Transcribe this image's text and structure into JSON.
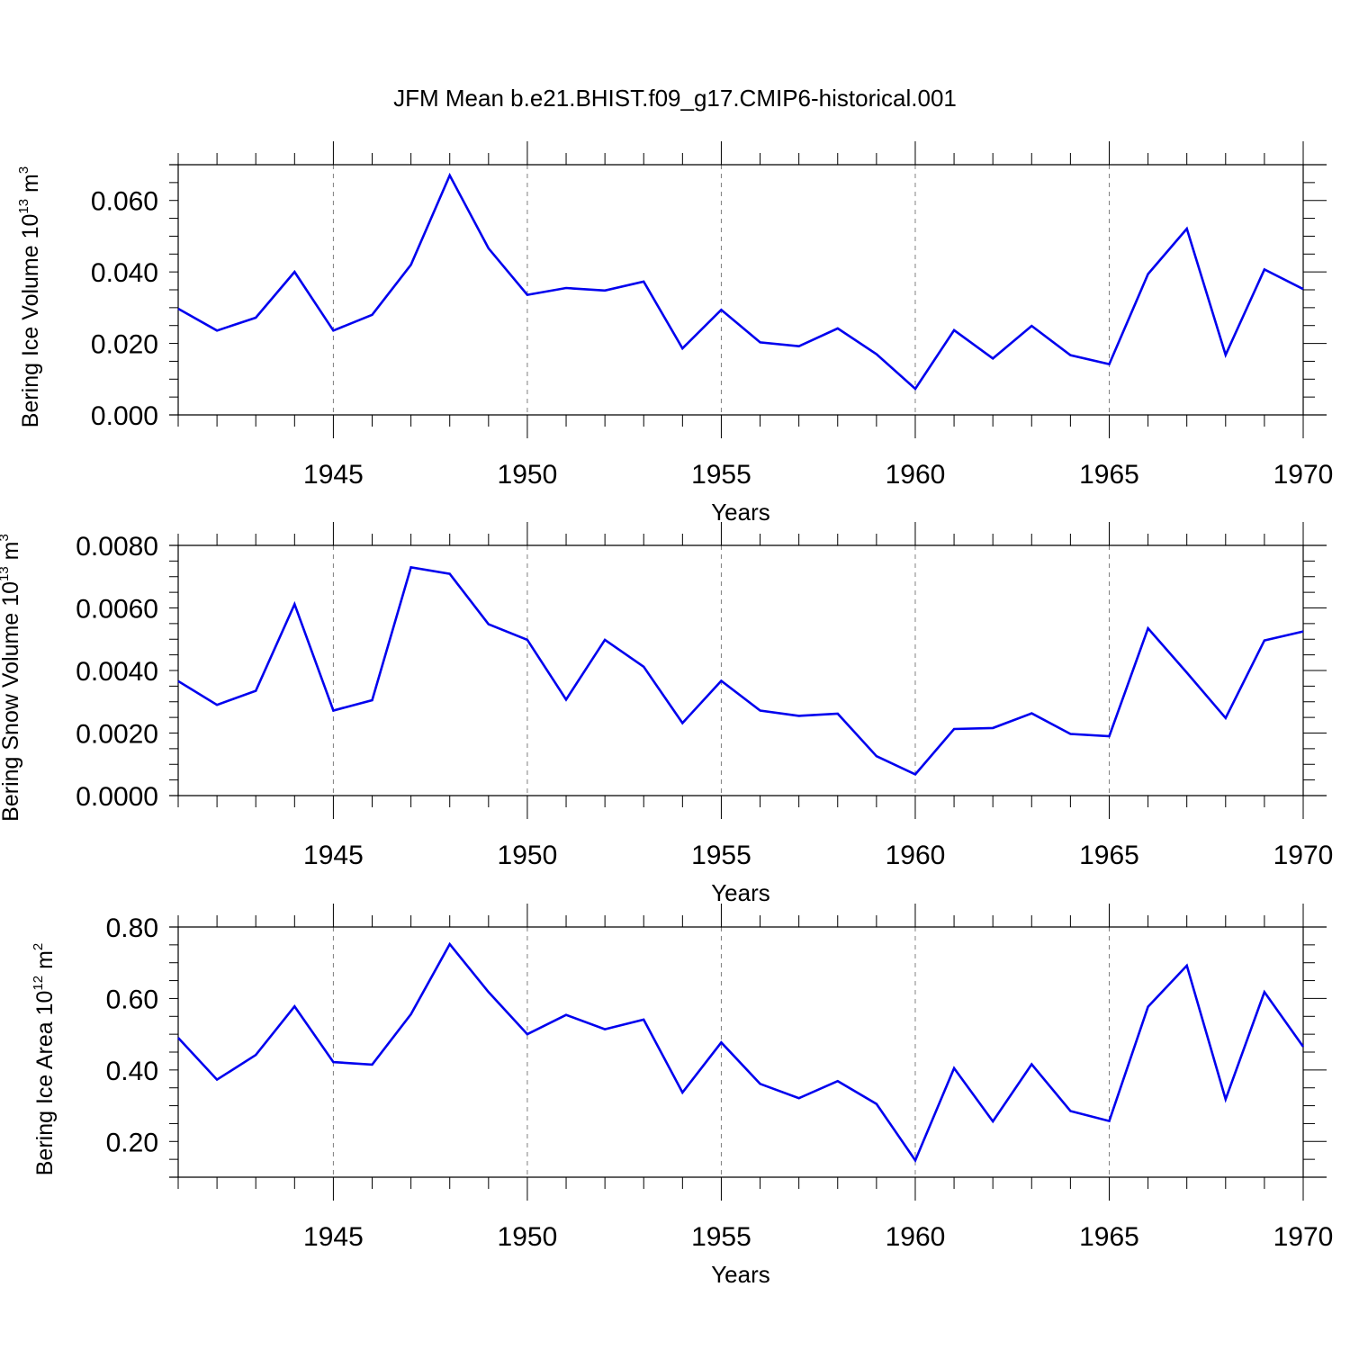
{
  "figure": {
    "title": "JFM Mean b.e21.BHIST.f09_g17.CMIP6-historical.001"
  },
  "colors": {
    "line": "#0000ee",
    "axis": "#000000",
    "grid": "#808080",
    "background": "#ffffff"
  },
  "chart_data": [
    {
      "type": "line",
      "ylabel": {
        "text": "Bering Ice Volume 10",
        "exp": "13",
        "unit": " m",
        "unit_exp": "3"
      },
      "xlabel": "Years",
      "xlim": [
        1941,
        1970
      ],
      "ylim": [
        0.0,
        0.07
      ],
      "xticks": [
        1945,
        1950,
        1955,
        1960,
        1965,
        1970
      ],
      "yticks": [
        0.0,
        0.02,
        0.04,
        0.06
      ],
      "yminor": [
        0.005,
        0.01,
        0.015,
        0.025,
        0.03,
        0.035,
        0.045,
        0.05,
        0.055,
        0.065
      ],
      "ytick_labels": [
        "0.000",
        "0.020",
        "0.040",
        "0.060"
      ],
      "grid": "vertical dashed at major x ticks",
      "x": [
        1941,
        1942,
        1943,
        1944,
        1945,
        1946,
        1947,
        1948,
        1949,
        1950,
        1951,
        1952,
        1953,
        1954,
        1955,
        1956,
        1957,
        1958,
        1959,
        1960,
        1961,
        1962,
        1963,
        1964,
        1965,
        1966,
        1967,
        1968,
        1969,
        1970
      ],
      "series": [
        {
          "values": [
            0.0297,
            0.0236,
            0.0272,
            0.04,
            0.0236,
            0.028,
            0.042,
            0.067,
            0.0466,
            0.0336,
            0.0355,
            0.0348,
            0.0373,
            0.0186,
            0.0294,
            0.0203,
            0.0192,
            0.0242,
            0.017,
            0.0073,
            0.0237,
            0.0158,
            0.0249,
            0.0167,
            0.0142,
            0.0394,
            0.0521,
            0.0168,
            0.0407,
            0.0352
          ]
        }
      ]
    },
    {
      "type": "line",
      "ylabel": {
        "text": "Bering Snow Volume 10",
        "exp": "13",
        "unit": " m",
        "unit_exp": "3"
      },
      "xlabel": "Years",
      "xlim": [
        1941,
        1970
      ],
      "ylim": [
        0.0,
        0.008
      ],
      "xticks": [
        1945,
        1950,
        1955,
        1960,
        1965,
        1970
      ],
      "yticks": [
        0.0,
        0.002,
        0.004,
        0.006,
        0.008
      ],
      "yminor": [
        0.0005,
        0.001,
        0.0015,
        0.0025,
        0.003,
        0.0035,
        0.0045,
        0.005,
        0.0055,
        0.0065,
        0.007,
        0.0075
      ],
      "ytick_labels": [
        "0.0000",
        "0.0020",
        "0.0040",
        "0.0060",
        "0.0080"
      ],
      "grid": "vertical dashed at major x ticks",
      "x": [
        1941,
        1942,
        1943,
        1944,
        1945,
        1946,
        1947,
        1948,
        1949,
        1950,
        1951,
        1952,
        1953,
        1954,
        1955,
        1956,
        1957,
        1958,
        1959,
        1960,
        1961,
        1962,
        1963,
        1964,
        1965,
        1966,
        1967,
        1968,
        1969,
        1970
      ],
      "series": [
        {
          "values": [
            0.00366,
            0.0029,
            0.00335,
            0.00612,
            0.00272,
            0.00305,
            0.0073,
            0.00709,
            0.00548,
            0.00498,
            0.00307,
            0.00498,
            0.00412,
            0.00232,
            0.00367,
            0.00272,
            0.00255,
            0.00262,
            0.00126,
            0.00068,
            0.00213,
            0.00216,
            0.00263,
            0.00197,
            0.0019,
            0.00535,
            0.00393,
            0.00248,
            0.00496,
            0.00525
          ]
        }
      ]
    },
    {
      "type": "line",
      "ylabel": {
        "text": "Bering Ice Area 10",
        "exp": "12",
        "unit": " m",
        "unit_exp": "2"
      },
      "xlabel": "Years",
      "xlim": [
        1941,
        1970
      ],
      "ylim": [
        0.1,
        0.8
      ],
      "xticks": [
        1945,
        1950,
        1955,
        1960,
        1965,
        1970
      ],
      "yticks": [
        0.2,
        0.4,
        0.6,
        0.8
      ],
      "yminor": [
        0.15,
        0.25,
        0.3,
        0.35,
        0.45,
        0.5,
        0.55,
        0.65,
        0.7,
        0.75
      ],
      "ytick_labels": [
        "0.20",
        "0.40",
        "0.60",
        "0.80"
      ],
      "grid": "vertical dashed at major x ticks",
      "x": [
        1941,
        1942,
        1943,
        1944,
        1945,
        1946,
        1947,
        1948,
        1949,
        1950,
        1951,
        1952,
        1953,
        1954,
        1955,
        1956,
        1957,
        1958,
        1959,
        1960,
        1961,
        1962,
        1963,
        1964,
        1965,
        1966,
        1967,
        1968,
        1969,
        1970
      ],
      "series": [
        {
          "values": [
            0.49,
            0.373,
            0.442,
            0.578,
            0.422,
            0.415,
            0.556,
            0.752,
            0.618,
            0.5,
            0.554,
            0.514,
            0.541,
            0.337,
            0.477,
            0.361,
            0.321,
            0.369,
            0.305,
            0.147,
            0.405,
            0.256,
            0.416,
            0.285,
            0.257,
            0.577,
            0.692,
            0.318,
            0.618,
            0.465
          ]
        }
      ]
    }
  ]
}
